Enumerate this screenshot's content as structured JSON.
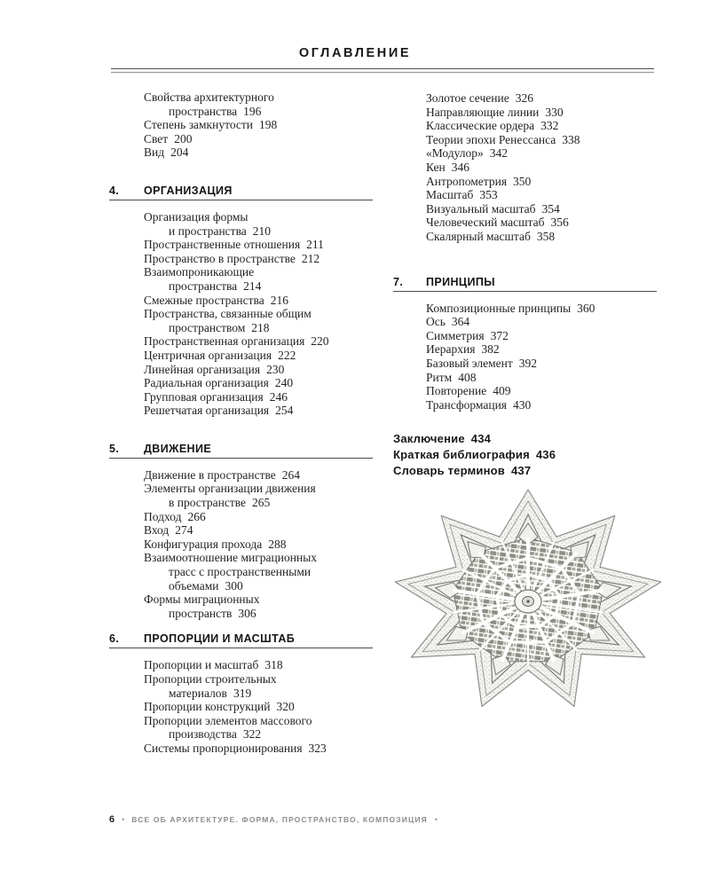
{
  "page": {
    "title": "ОГЛАВЛЕНИЕ",
    "footer": {
      "page_number": "6",
      "bullet": "•",
      "text": "ВСЕ ОБ АРХИТЕКТУРЕ. ФОРМА, ПРОСТРАНСТВО, КОМПОЗИЦИЯ"
    },
    "colors": {
      "text": "#242424",
      "header_rule": "#4a4a4a",
      "footer_muted": "#8d8d8d"
    }
  },
  "left_column": {
    "intro_items": [
      {
        "label": "Свойства архитектурного\nпространства",
        "page": "196"
      },
      {
        "label": "Степень замкнутости",
        "page": "198"
      },
      {
        "label": "Свет",
        "page": "200"
      },
      {
        "label": "Вид",
        "page": "204"
      }
    ],
    "sections": [
      {
        "number": "4.",
        "title": "ОРГАНИЗАЦИЯ",
        "items": [
          {
            "label": "Организация формы\nи пространства",
            "page": "210"
          },
          {
            "label": "Пространственные отношения",
            "page": "211"
          },
          {
            "label": "Пространство в пространстве",
            "page": "212"
          },
          {
            "label": "Взаимопроникающие\nпространства",
            "page": "214"
          },
          {
            "label": "Смежные пространства",
            "page": "216"
          },
          {
            "label": "Пространства, связанные общим\nпространством",
            "page": "218"
          },
          {
            "label": "Пространственная организация",
            "page": "220"
          },
          {
            "label": "Центричная организация",
            "page": "222"
          },
          {
            "label": "Линейная организация",
            "page": "230"
          },
          {
            "label": "Радиальная организация",
            "page": "240"
          },
          {
            "label": "Групповая организация",
            "page": "246"
          },
          {
            "label": "Решетчатая организация",
            "page": "254"
          }
        ]
      },
      {
        "number": "5.",
        "title": "ДВИЖЕНИЕ",
        "items": [
          {
            "label": "Движение в пространстве",
            "page": "264"
          },
          {
            "label": "Элементы организации движения\nв пространстве",
            "page": "265"
          },
          {
            "label": "Подход",
            "page": "266"
          },
          {
            "label": "Вход",
            "page": "274"
          },
          {
            "label": "Конфигурация прохода",
            "page": "288"
          },
          {
            "label": "Взаимоотношение миграционных\nтрасс с пространственными\nобъемами",
            "page": "300"
          },
          {
            "label": "Формы миграционных\nпространств",
            "page": "306"
          }
        ]
      },
      {
        "number": "6.",
        "title": "ПРОПОРЦИИ И МАСШТАБ",
        "items": [
          {
            "label": "Пропорции и масштаб",
            "page": "318"
          },
          {
            "label": "Пропорции строительных\nматериалов",
            "page": "319"
          },
          {
            "label": "Пропорции конструкций",
            "page": "320"
          },
          {
            "label": "Пропорции элементов массового\nпроизводства",
            "page": "322"
          },
          {
            "label": "Системы пропорционирования",
            "page": "323"
          }
        ]
      }
    ]
  },
  "right_column": {
    "intro_items": [
      {
        "label": "Золотое сечение",
        "page": "326"
      },
      {
        "label": "Направляющие линии",
        "page": "330"
      },
      {
        "label": "Классические ордера",
        "page": "332"
      },
      {
        "label": "Теории эпохи Ренессанса",
        "page": "338"
      },
      {
        "label": "«Модулор»",
        "page": "342"
      },
      {
        "label": "Кен",
        "page": "346"
      },
      {
        "label": "Антропометрия",
        "page": "350"
      },
      {
        "label": "Масштаб",
        "page": "353"
      },
      {
        "label": "Визуальный масштаб",
        "page": "354"
      },
      {
        "label": "Человеческий масштаб",
        "page": "356"
      },
      {
        "label": "Скалярный масштаб",
        "page": "358"
      }
    ],
    "sections": [
      {
        "number": "7.",
        "title": "ПРИНЦИПЫ",
        "items": [
          {
            "label": "Композиционные принципы",
            "page": "360"
          },
          {
            "label": "Ось",
            "page": "364"
          },
          {
            "label": "Симметрия",
            "page": "372"
          },
          {
            "label": "Иерархия",
            "page": "382"
          },
          {
            "label": "Базовый элемент",
            "page": "392"
          },
          {
            "label": "Ритм",
            "page": "408"
          },
          {
            "label": "Повторение",
            "page": "409"
          },
          {
            "label": "Трансформация",
            "page": "430"
          }
        ]
      }
    ],
    "closing_items": [
      {
        "label": "Заключение",
        "page": "434"
      },
      {
        "label": "Краткая библиография",
        "page": "436"
      },
      {
        "label": "Словарь терминов",
        "page": "437"
      }
    ],
    "figure": {
      "name": "star-fortress-city-plan"
    }
  }
}
